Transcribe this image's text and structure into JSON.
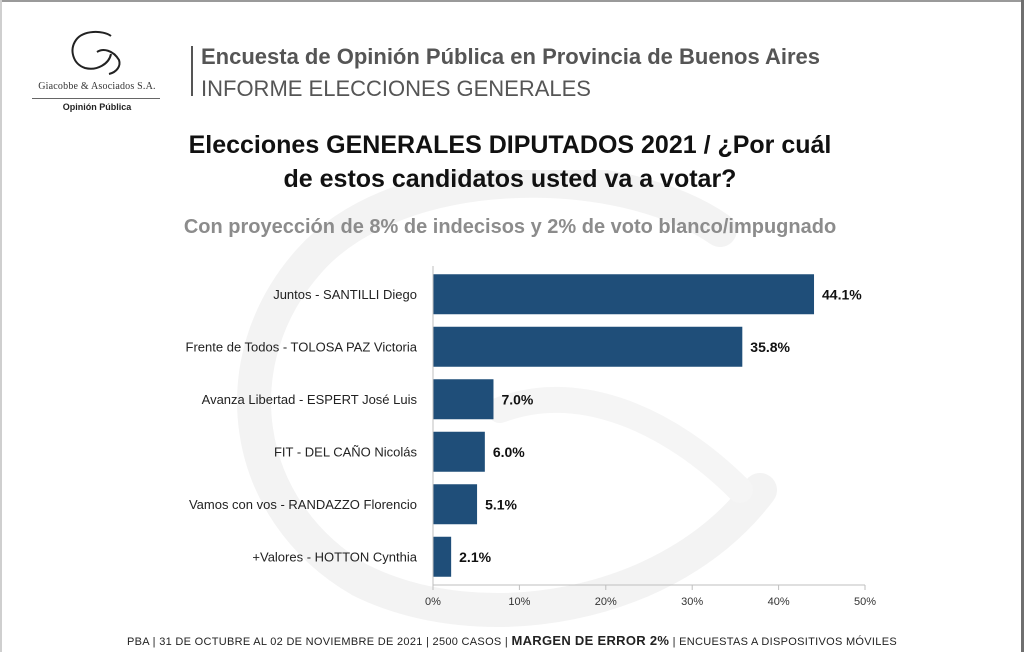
{
  "logo": {
    "name": "Giacobbe & Asociados S.A.",
    "sub": "Opinión Pública"
  },
  "header": {
    "title": "Encuesta de Opinión Pública en Provincia de Buenos Aires",
    "subtitle": "INFORME ELECCIONES GENERALES"
  },
  "chart_title_lines": [
    "Elecciones GENERALES DIPUTADOS 2021 / ¿Por cuál",
    "de estos candidatos usted va a votar?"
  ],
  "chart_subtitle": "Con proyección de 8% de indecisos y 2% de voto blanco/impugnado",
  "chart_data": {
    "type": "bar",
    "orientation": "horizontal",
    "categories": [
      "Juntos - SANTILLI Diego",
      "Frente de Todos - TOLOSA PAZ Victoria",
      "Avanza Libertad - ESPERT José Luis",
      "FIT - DEL CAÑO Nicolás",
      "Vamos con vos - RANDAZZO Florencio",
      "+Valores - HOTTON Cynthia"
    ],
    "values": [
      44.1,
      35.8,
      7.0,
      6.0,
      5.1,
      2.1
    ],
    "value_labels": [
      "44.1%",
      "35.8%",
      "7.0%",
      "6.0%",
      "5.1%",
      "2.1%"
    ],
    "xlim": [
      0,
      50
    ],
    "xticks": [
      0,
      10,
      20,
      30,
      40,
      50
    ],
    "xtick_labels": [
      "0%",
      "10%",
      "20%",
      "30%",
      "40%",
      "50%"
    ],
    "bar_color": "#1f4e79",
    "grid": false,
    "legend": "none"
  },
  "footer": {
    "part1": "PBA | 31 DE OCTUBRE AL 02 DE NOVIEMBRE DE 2021 | 2500 CASOS | ",
    "strong": "MARGEN DE ERROR 2%",
    "part2": " | ENCUESTAS A DISPOSITIVOS MÓVILES"
  }
}
